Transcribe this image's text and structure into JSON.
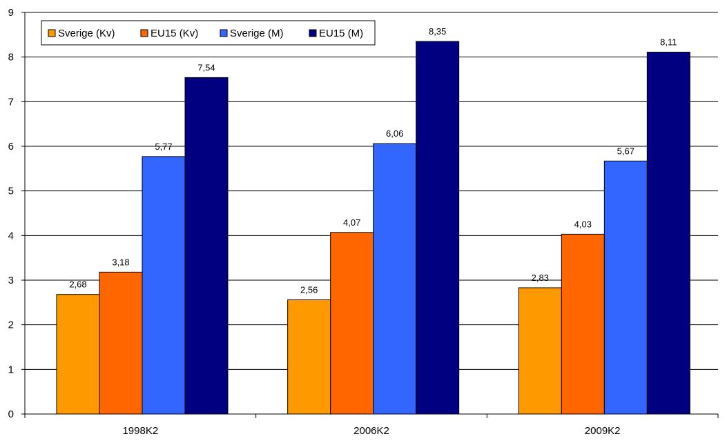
{
  "chart_data": {
    "type": "bar",
    "categories": [
      "1998K2",
      "2006K2",
      "2009K2"
    ],
    "series": [
      {
        "name": "Sverige (Kv)",
        "values": [
          2.68,
          2.56,
          2.83
        ],
        "color": "#FF9900"
      },
      {
        "name": "EU15 (Kv)",
        "values": [
          3.18,
          4.07,
          4.03
        ],
        "color": "#FF6600"
      },
      {
        "name": "Sverige (M)",
        "values": [
          5.77,
          6.06,
          5.67
        ],
        "color": "#3366FF"
      },
      {
        "name": "EU15 (M)",
        "values": [
          7.54,
          8.35,
          8.11
        ],
        "color": "#000080"
      }
    ],
    "data_labels": [
      [
        "2,68",
        "2,56",
        "2,83"
      ],
      [
        "3,18",
        "4,07",
        "4,03"
      ],
      [
        "5,77",
        "6,06",
        "5,67"
      ],
      [
        "7,54",
        "8,35",
        "8,11"
      ]
    ],
    "y_ticks": [
      "0",
      "1",
      "2",
      "3",
      "4",
      "5",
      "6",
      "7",
      "8",
      "9"
    ],
    "ylim": [
      0,
      9
    ],
    "grid": true,
    "legend": "top-left",
    "title": "",
    "xlabel": "",
    "ylabel": ""
  }
}
